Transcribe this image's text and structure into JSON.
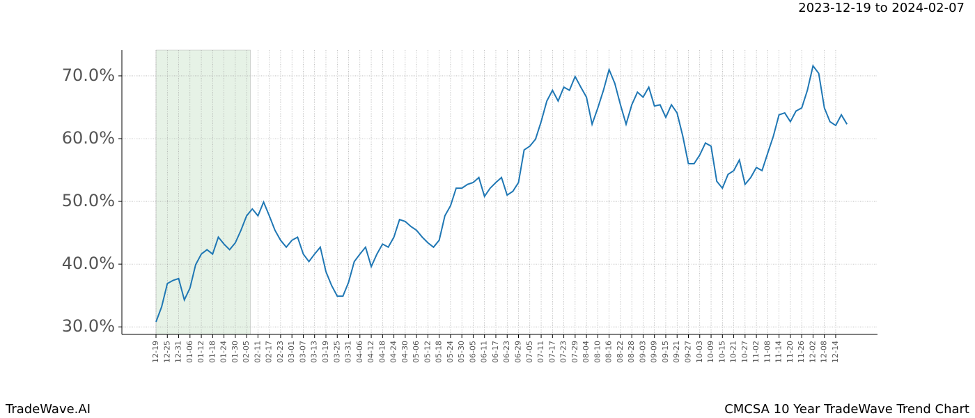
{
  "chart_data": {
    "type": "line",
    "title": "CMCSA 10 Year TradeWave Trend Chart",
    "subtitle": "2023-12-19 to 2024-02-07",
    "brand": "TradeWave.AI",
    "categories": [
      "12-19",
      null,
      "12-25",
      null,
      "12-31",
      null,
      "01-06",
      null,
      "01-12",
      null,
      "01-18",
      null,
      "01-24",
      null,
      "01-30",
      null,
      "02-05",
      null,
      "02-11",
      null,
      "02-17",
      null,
      "02-23",
      null,
      "03-01",
      null,
      "03-07",
      null,
      "03-13",
      null,
      "03-19",
      null,
      "03-25",
      null,
      "03-31",
      null,
      "04-06",
      null,
      "04-12",
      null,
      "04-18",
      null,
      "04-24",
      null,
      "04-30",
      null,
      "05-06",
      null,
      "05-12",
      null,
      "05-18",
      null,
      "05-24",
      null,
      "05-30",
      null,
      "06-05",
      null,
      "06-11",
      null,
      "06-17",
      null,
      "06-23",
      null,
      "06-29",
      null,
      "07-05",
      null,
      "07-11",
      null,
      "07-17",
      null,
      "07-23",
      null,
      "07-29",
      null,
      "08-04",
      null,
      "08-10",
      null,
      "08-16",
      null,
      "08-22",
      null,
      "08-28",
      null,
      "09-03",
      null,
      "09-09",
      null,
      "09-15",
      null,
      "09-21",
      null,
      "09-27",
      null,
      "10-03",
      null,
      "10-09",
      null,
      "10-15",
      null,
      "10-21",
      null,
      "10-27",
      null,
      "11-02",
      null,
      "11-08",
      null,
      "11-14",
      null,
      "11-20",
      null,
      "11-26",
      null,
      "12-02",
      null,
      "12-08",
      null,
      "12-14",
      null,
      null
    ],
    "values": [
      30.8,
      33.2,
      36.9,
      37.4,
      37.7,
      34.3,
      36.2,
      39.9,
      41.6,
      42.3,
      41.6,
      44.3,
      43.2,
      42.3,
      43.4,
      45.4,
      47.7,
      48.8,
      47.7,
      49.9,
      47.7,
      45.4,
      43.8,
      42.7,
      43.8,
      44.3,
      41.6,
      40.4,
      41.6,
      42.7,
      38.8,
      36.6,
      34.9,
      34.9,
      37.1,
      40.4,
      41.6,
      42.7,
      39.6,
      41.6,
      43.2,
      42.7,
      44.3,
      47.1,
      46.8,
      46.0,
      45.4,
      44.3,
      43.4,
      42.7,
      43.8,
      47.7,
      49.3,
      52.1,
      52.1,
      52.7,
      53.0,
      53.8,
      50.8,
      52.1,
      53.0,
      53.8,
      51.0,
      51.6,
      53.0,
      58.2,
      58.8,
      59.9,
      62.7,
      66.0,
      67.7,
      66.0,
      68.2,
      67.7,
      69.9,
      68.2,
      66.6,
      62.3,
      64.9,
      67.7,
      71.0,
      68.8,
      65.4,
      62.3,
      65.4,
      67.4,
      66.6,
      68.2,
      65.2,
      65.4,
      63.4,
      65.4,
      64.1,
      60.4,
      56.0,
      56.0,
      57.4,
      59.3,
      58.8,
      53.2,
      52.1,
      54.3,
      54.9,
      56.6,
      52.7,
      53.8,
      55.4,
      54.9,
      57.7,
      60.4,
      63.8,
      64.1,
      62.7,
      64.4,
      64.9,
      67.7,
      71.6,
      70.4,
      64.9,
      62.7,
      62.1,
      63.8,
      62.3
    ],
    "color": "#1f77b4",
    "shade": [
      0,
      16.67
    ],
    "shade_color": "#e6f2e6",
    "ylim": [
      28.8,
      74.1
    ],
    "yticks": [
      {
        "value": 30,
        "label": "30.0%"
      },
      {
        "value": 40,
        "label": "40.0%"
      },
      {
        "value": 50,
        "label": "50.0%"
      },
      {
        "value": 60,
        "label": "60.0%"
      },
      {
        "value": 70,
        "label": "70.0%"
      }
    ],
    "grid": true
  }
}
